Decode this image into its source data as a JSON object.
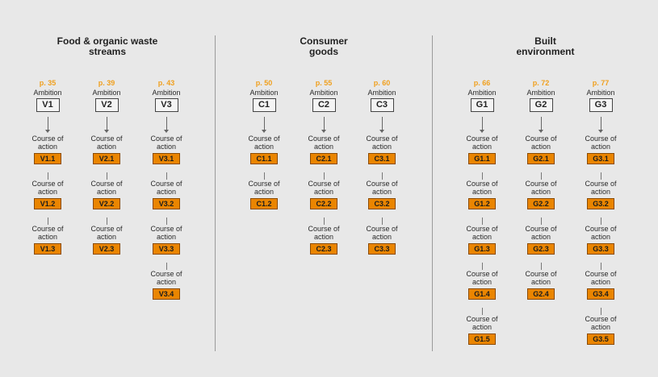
{
  "ambition_label": "Ambition",
  "action_label_line1": "Course of",
  "action_label_line2": "action",
  "sections": [
    {
      "title": "Food & organic waste\nstreams",
      "columns": [
        {
          "page": "p. 35",
          "ambition": "V1",
          "actions": [
            "V1.1",
            "V1.2",
            "V1.3"
          ]
        },
        {
          "page": "p. 39",
          "ambition": "V2",
          "actions": [
            "V2.1",
            "V2.2",
            "V2.3"
          ]
        },
        {
          "page": "p. 43",
          "ambition": "V3",
          "actions": [
            "V3.1",
            "V3.2",
            "V3.3",
            "V3.4"
          ]
        }
      ]
    },
    {
      "title": "Consumer\ngoods",
      "columns": [
        {
          "page": "p. 50",
          "ambition": "C1",
          "actions": [
            "C1.1",
            "C1.2"
          ]
        },
        {
          "page": "p. 55",
          "ambition": "C2",
          "actions": [
            "C2.1",
            "C2.2",
            "C2.3"
          ]
        },
        {
          "page": "p. 60",
          "ambition": "C3",
          "actions": [
            "C3.1",
            "C3.2",
            "C3.3"
          ]
        }
      ]
    },
    {
      "title": "Built\nenvironment",
      "columns": [
        {
          "page": "p. 66",
          "ambition": "G1",
          "actions": [
            "G1.1",
            "G1.2",
            "G1.3",
            "G1.4",
            "G1.5"
          ]
        },
        {
          "page": "p. 72",
          "ambition": "G2",
          "actions": [
            "G2.1",
            "G2.2",
            "G2.3",
            "G2.4"
          ]
        },
        {
          "page": "p. 77",
          "ambition": "G3",
          "actions": [
            "G3.1",
            "G3.2",
            "G3.3",
            "G3.4",
            "G3.5"
          ]
        }
      ]
    }
  ]
}
